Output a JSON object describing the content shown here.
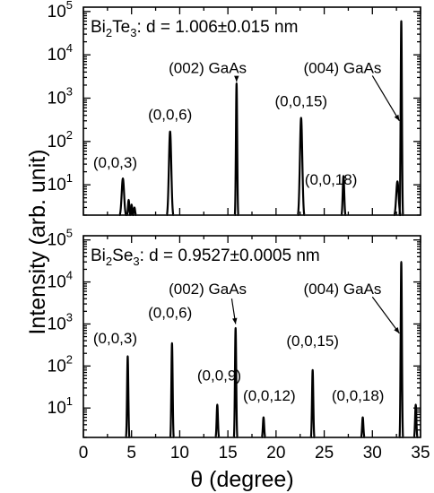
{
  "chart_data": [
    {
      "type": "line",
      "title_parts": [
        "Bi",
        "2",
        "Te",
        "3",
        ": d = 1.006±0.015 nm"
      ],
      "xlim": [
        0,
        35
      ],
      "ylim_log10": [
        0.3,
        5.1
      ],
      "yscale": "log",
      "yticks": [
        {
          "base": "10",
          "exp": "1",
          "v": 1
        },
        {
          "base": "10",
          "exp": "2",
          "v": 2
        },
        {
          "base": "10",
          "exp": "3",
          "v": 3
        },
        {
          "base": "10",
          "exp": "4",
          "v": 4
        },
        {
          "base": "10",
          "exp": "5",
          "v": 5
        }
      ],
      "peaks": [
        {
          "x": 4.1,
          "y": 14,
          "width": 0.35
        },
        {
          "x": 4.7,
          "y": 4.5,
          "width": 0.15
        },
        {
          "x": 5.0,
          "y": 3.5,
          "width": 0.15
        },
        {
          "x": 5.3,
          "y": 3.0,
          "width": 0.12
        },
        {
          "x": 9.0,
          "y": 170,
          "width": 0.35
        },
        {
          "x": 15.9,
          "y": 2200,
          "width": 0.08
        },
        {
          "x": 22.6,
          "y": 350,
          "width": 0.35
        },
        {
          "x": 27.0,
          "y": 16,
          "width": 0.22
        },
        {
          "x": 32.6,
          "y": 12,
          "width": 0.35
        },
        {
          "x": 33.0,
          "y": 60000,
          "width": 0.1
        }
      ],
      "annotations": [
        {
          "text": "(0,0,3)",
          "x": 3.3,
          "y": 25
        },
        {
          "text": "(0,0,6)",
          "x": 9.0,
          "y": 320
        },
        {
          "text": "(002) GaAs",
          "x": 12.9,
          "y": 3800
        },
        {
          "text": "(0,0,15)",
          "x": 22.6,
          "y": 650
        },
        {
          "text": "(0,0,18)",
          "x": 25.7,
          "y": 10
        },
        {
          "text": "(004) GaAs",
          "x": 26.9,
          "y": 3800
        }
      ]
    },
    {
      "type": "line",
      "title_parts": [
        "Bi",
        "2",
        "Se",
        "3",
        ": d = 0.9527±0.0005 nm"
      ],
      "xlim": [
        0,
        35
      ],
      "ylim_log10": [
        0.3,
        5.1
      ],
      "yscale": "log",
      "yticks": [
        {
          "base": "10",
          "exp": "1",
          "v": 1
        },
        {
          "base": "10",
          "exp": "2",
          "v": 2
        },
        {
          "base": "10",
          "exp": "3",
          "v": 3
        },
        {
          "base": "10",
          "exp": "4",
          "v": 4
        },
        {
          "base": "10",
          "exp": "5",
          "v": 5
        }
      ],
      "peaks": [
        {
          "x": 4.6,
          "y": 170,
          "width": 0.08
        },
        {
          "x": 9.2,
          "y": 350,
          "width": 0.08
        },
        {
          "x": 13.9,
          "y": 12,
          "width": 0.08
        },
        {
          "x": 15.8,
          "y": 800,
          "width": 0.08
        },
        {
          "x": 18.7,
          "y": 6,
          "width": 0.08
        },
        {
          "x": 23.8,
          "y": 80,
          "width": 0.1
        },
        {
          "x": 29.0,
          "y": 6,
          "width": 0.08
        },
        {
          "x": 33.0,
          "y": 30000,
          "width": 0.08
        },
        {
          "x": 34.5,
          "y": 12,
          "width": 0.08
        }
      ],
      "annotations": [
        {
          "text": "(0,0,3)",
          "x": 3.3,
          "y": 350
        },
        {
          "text": "(0,0,6)",
          "x": 9.0,
          "y": 1400
        },
        {
          "text": "(002) GaAs",
          "x": 12.9,
          "y": 5200
        },
        {
          "text": "(0,0,9)",
          "x": 14.1,
          "y": 45
        },
        {
          "text": "(0,0,12)",
          "x": 19.3,
          "y": 15
        },
        {
          "text": "(0,0,15)",
          "x": 23.8,
          "y": 300
        },
        {
          "text": "(0,0,18)",
          "x": 28.5,
          "y": 15
        },
        {
          "text": "(004) GaAs",
          "x": 26.9,
          "y": 5200
        }
      ]
    }
  ],
  "xticks": [
    "0",
    "5",
    "10",
    "15",
    "20",
    "25",
    "30",
    "35"
  ],
  "xlabel": "θ (degree)",
  "ylabel": "Intensity (arb. unit)"
}
